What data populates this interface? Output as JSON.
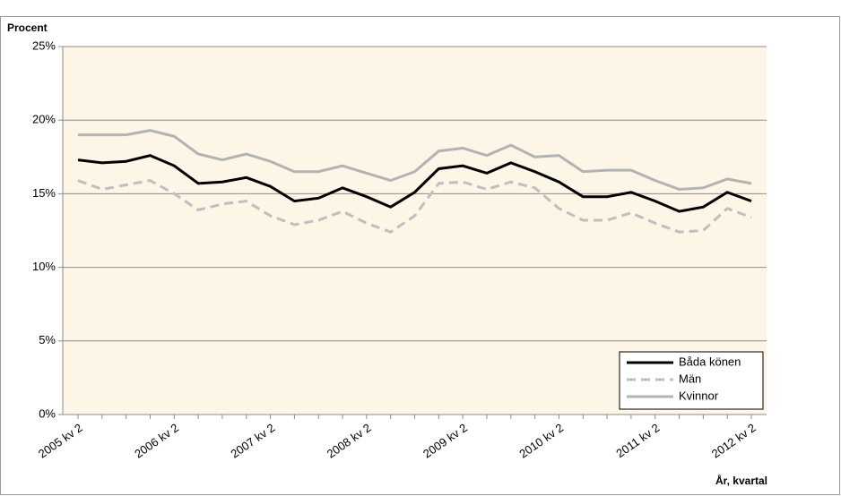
{
  "chart_data": {
    "type": "line",
    "y_label": "Procent",
    "x_label": "År, kvartal",
    "categories": [
      "2005 kv 2",
      null,
      null,
      null,
      "2006 kv 2",
      null,
      null,
      null,
      "2007 kv 2",
      null,
      null,
      null,
      "2008 kv 2",
      null,
      null,
      null,
      "2009 kv 2",
      null,
      null,
      null,
      "2010 kv 2",
      null,
      null,
      null,
      "2011 kv 2",
      null,
      null,
      null,
      "2012 kv 2"
    ],
    "series": [
      {
        "name": "Båda könen",
        "color": "#000000",
        "dash": "solid",
        "values": [
          17.3,
          17.1,
          17.2,
          17.6,
          16.9,
          15.7,
          15.8,
          16.1,
          15.5,
          14.5,
          14.7,
          15.4,
          14.8,
          14.1,
          15.1,
          16.7,
          16.9,
          16.4,
          17.1,
          16.5,
          15.8,
          14.8,
          14.8,
          15.1,
          14.5,
          13.8,
          14.1,
          15.1,
          14.5
        ]
      },
      {
        "name": "Män",
        "color": "#bfbfbf",
        "dash": "dashed",
        "values": [
          15.9,
          15.3,
          15.6,
          15.9,
          15.0,
          13.9,
          14.3,
          14.5,
          13.5,
          12.9,
          13.2,
          13.8,
          13.0,
          12.4,
          13.5,
          15.7,
          15.8,
          15.3,
          15.8,
          15.4,
          14.0,
          13.2,
          13.2,
          13.7,
          13.0,
          12.4,
          12.5,
          14.0,
          13.4
        ]
      },
      {
        "name": "Kvinnor",
        "color": "#b3b3b3",
        "dash": "solid",
        "values": [
          19.0,
          19.0,
          19.0,
          19.3,
          18.9,
          17.7,
          17.3,
          17.7,
          17.2,
          16.5,
          16.5,
          16.9,
          16.4,
          15.9,
          16.5,
          17.9,
          18.1,
          17.6,
          18.3,
          17.5,
          17.6,
          16.5,
          16.6,
          16.6,
          15.9,
          15.3,
          15.4,
          16.0,
          15.7
        ]
      }
    ],
    "ylim": [
      0,
      25
    ],
    "yticks": [
      {
        "value": 0,
        "label": "0%"
      },
      {
        "value": 5,
        "label": "5%"
      },
      {
        "value": 10,
        "label": "10%"
      },
      {
        "value": 15,
        "label": "15%"
      },
      {
        "value": 20,
        "label": "20%"
      },
      {
        "value": 25,
        "label": "25%"
      }
    ],
    "grid": true,
    "legend": "bottom-right",
    "plot_background": "#fdf5e6"
  }
}
